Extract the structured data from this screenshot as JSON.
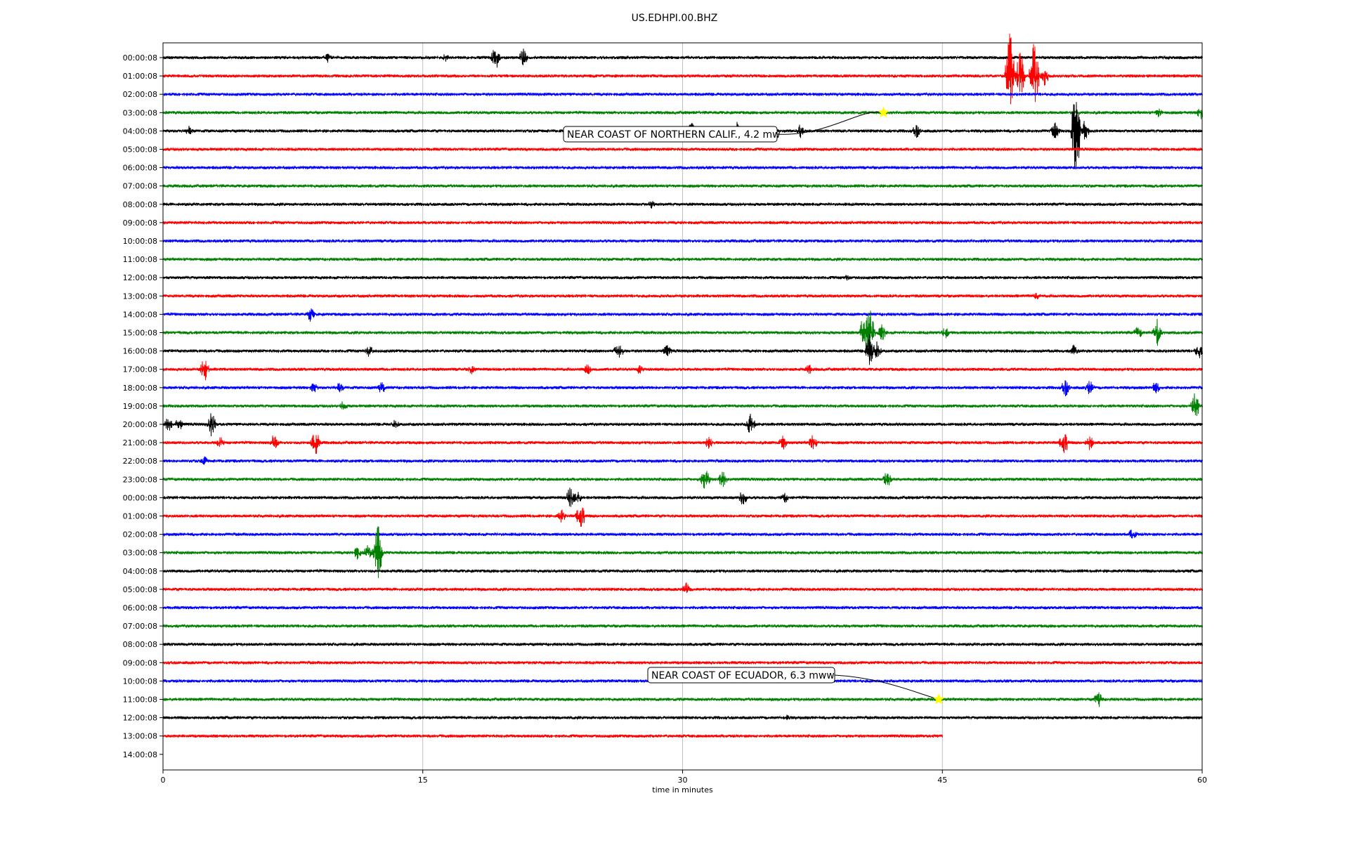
{
  "title": "US.EDHPI.00.BHZ",
  "chart_data": {
    "type": "line",
    "title": "US.EDHPI.00.BHZ",
    "xlabel": "time in minutes",
    "ylabel": "",
    "xlim": [
      0,
      60
    ],
    "x_ticks": [
      0,
      15,
      30,
      45,
      60
    ],
    "grid": "vertical at x ticks",
    "trace_colors": [
      "#000000",
      "#ff0000",
      "#0000ff",
      "#008000"
    ],
    "row_labels": [
      "00:00:08",
      "01:00:08",
      "02:00:08",
      "03:00:08",
      "04:00:08",
      "05:00:08",
      "06:00:08",
      "07:00:08",
      "08:00:08",
      "09:00:08",
      "10:00:08",
      "11:00:08",
      "12:00:08",
      "13:00:08",
      "14:00:08",
      "15:00:08",
      "16:00:08",
      "17:00:08",
      "18:00:08",
      "19:00:08",
      "20:00:08",
      "21:00:08",
      "22:00:08",
      "23:00:08",
      "00:00:08",
      "01:00:08",
      "02:00:08",
      "03:00:08",
      "04:00:08",
      "05:00:08",
      "06:00:08",
      "07:00:08",
      "08:00:08",
      "09:00:08",
      "10:00:08",
      "11:00:08",
      "12:00:08",
      "13:00:08",
      "14:00:08"
    ],
    "last_trace_end_minute": 45,
    "bursts": [
      {
        "row": 0,
        "minute": 9.5,
        "amp": 0.3
      },
      {
        "row": 0,
        "minute": 16.3,
        "amp": 0.25
      },
      {
        "row": 0,
        "minute": 19.2,
        "amp": 0.7
      },
      {
        "row": 0,
        "minute": 20.8,
        "amp": 0.55
      },
      {
        "row": 1,
        "minute": 48.9,
        "amp": 2.6
      },
      {
        "row": 1,
        "minute": 49.5,
        "amp": 1.5
      },
      {
        "row": 1,
        "minute": 50.3,
        "amp": 2.0
      },
      {
        "row": 1,
        "minute": 50.9,
        "amp": 0.6
      },
      {
        "row": 3,
        "minute": 57.5,
        "amp": 0.3
      },
      {
        "row": 3,
        "minute": 59.9,
        "amp": 0.4
      },
      {
        "row": 4,
        "minute": 1.5,
        "amp": 0.3
      },
      {
        "row": 4,
        "minute": 30.5,
        "amp": 0.6
      },
      {
        "row": 4,
        "minute": 33.1,
        "amp": 0.6
      },
      {
        "row": 4,
        "minute": 36.8,
        "amp": 0.4
      },
      {
        "row": 4,
        "minute": 43.5,
        "amp": 0.4
      },
      {
        "row": 4,
        "minute": 51.5,
        "amp": 0.5
      },
      {
        "row": 4,
        "minute": 52.7,
        "amp": 3.0
      },
      {
        "row": 4,
        "minute": 53.2,
        "amp": 0.6
      },
      {
        "row": 8,
        "minute": 28.2,
        "amp": 0.25
      },
      {
        "row": 12,
        "minute": 39.5,
        "amp": 0.2
      },
      {
        "row": 13,
        "minute": 50.4,
        "amp": 0.25
      },
      {
        "row": 14,
        "minute": 8.5,
        "amp": 0.45
      },
      {
        "row": 15,
        "minute": 40.5,
        "amp": 1.4
      },
      {
        "row": 15,
        "minute": 40.8,
        "amp": 1.6
      },
      {
        "row": 15,
        "minute": 41.5,
        "amp": 0.5
      },
      {
        "row": 15,
        "minute": 45.2,
        "amp": 0.4
      },
      {
        "row": 15,
        "minute": 56.3,
        "amp": 0.4
      },
      {
        "row": 15,
        "minute": 57.4,
        "amp": 0.8
      },
      {
        "row": 16,
        "minute": 11.9,
        "amp": 0.4
      },
      {
        "row": 16,
        "minute": 26.3,
        "amp": 0.6
      },
      {
        "row": 16,
        "minute": 29.1,
        "amp": 0.4
      },
      {
        "row": 16,
        "minute": 40.8,
        "amp": 1.0
      },
      {
        "row": 16,
        "minute": 41.2,
        "amp": 0.6
      },
      {
        "row": 16,
        "minute": 52.6,
        "amp": 0.4
      },
      {
        "row": 16,
        "minute": 59.8,
        "amp": 0.45
      },
      {
        "row": 17,
        "minute": 2.4,
        "amp": 0.7
      },
      {
        "row": 17,
        "minute": 17.8,
        "amp": 0.3
      },
      {
        "row": 17,
        "minute": 24.5,
        "amp": 0.35
      },
      {
        "row": 17,
        "minute": 27.5,
        "amp": 0.3
      },
      {
        "row": 17,
        "minute": 37.3,
        "amp": 0.3
      },
      {
        "row": 18,
        "minute": 8.7,
        "amp": 0.35
      },
      {
        "row": 18,
        "minute": 10.2,
        "amp": 0.35
      },
      {
        "row": 18,
        "minute": 12.6,
        "amp": 0.4
      },
      {
        "row": 18,
        "minute": 52.1,
        "amp": 0.5
      },
      {
        "row": 18,
        "minute": 53.5,
        "amp": 0.5
      },
      {
        "row": 18,
        "minute": 57.3,
        "amp": 0.4
      },
      {
        "row": 19,
        "minute": 10.4,
        "amp": 0.3
      },
      {
        "row": 19,
        "minute": 59.6,
        "amp": 0.8
      },
      {
        "row": 20,
        "minute": 0.3,
        "amp": 0.5
      },
      {
        "row": 20,
        "minute": 0.9,
        "amp": 0.4
      },
      {
        "row": 20,
        "minute": 2.8,
        "amp": 0.75
      },
      {
        "row": 20,
        "minute": 13.4,
        "amp": 0.3
      },
      {
        "row": 20,
        "minute": 33.9,
        "amp": 0.85
      },
      {
        "row": 21,
        "minute": 3.3,
        "amp": 0.4
      },
      {
        "row": 21,
        "minute": 6.4,
        "amp": 0.5
      },
      {
        "row": 21,
        "minute": 8.8,
        "amp": 0.8
      },
      {
        "row": 21,
        "minute": 31.5,
        "amp": 0.4
      },
      {
        "row": 21,
        "minute": 35.8,
        "amp": 0.4
      },
      {
        "row": 21,
        "minute": 37.5,
        "amp": 0.5
      },
      {
        "row": 21,
        "minute": 52.0,
        "amp": 0.8
      },
      {
        "row": 21,
        "minute": 53.5,
        "amp": 0.5
      },
      {
        "row": 22,
        "minute": 2.4,
        "amp": 0.3
      },
      {
        "row": 23,
        "minute": 31.3,
        "amp": 0.8
      },
      {
        "row": 23,
        "minute": 32.3,
        "amp": 0.6
      },
      {
        "row": 23,
        "minute": 41.8,
        "amp": 0.5
      },
      {
        "row": 24,
        "minute": 23.5,
        "amp": 0.6
      },
      {
        "row": 24,
        "minute": 23.9,
        "amp": 0.5
      },
      {
        "row": 24,
        "minute": 33.5,
        "amp": 0.55
      },
      {
        "row": 24,
        "minute": 35.9,
        "amp": 0.35
      },
      {
        "row": 25,
        "minute": 23.0,
        "amp": 0.4
      },
      {
        "row": 25,
        "minute": 24.1,
        "amp": 0.9
      },
      {
        "row": 26,
        "minute": 56.0,
        "amp": 0.4
      },
      {
        "row": 27,
        "minute": 11.2,
        "amp": 0.4
      },
      {
        "row": 27,
        "minute": 11.8,
        "amp": 0.5
      },
      {
        "row": 27,
        "minute": 12.4,
        "amp": 1.7
      },
      {
        "row": 29,
        "minute": 30.2,
        "amp": 0.4
      },
      {
        "row": 35,
        "minute": 54.0,
        "amp": 0.5
      },
      {
        "row": 36,
        "minute": 36.0,
        "amp": 0.2
      }
    ]
  },
  "events": [
    {
      "label": "NEAR COAST OF NORTHERN CALIF., 4.2 mw",
      "row": 3,
      "minute": 41.6
    },
    {
      "label": "NEAR COAST OF ECUADOR, 6.3 mww",
      "row": 35,
      "minute": 44.8
    }
  ],
  "marker_color": "#ffff00"
}
